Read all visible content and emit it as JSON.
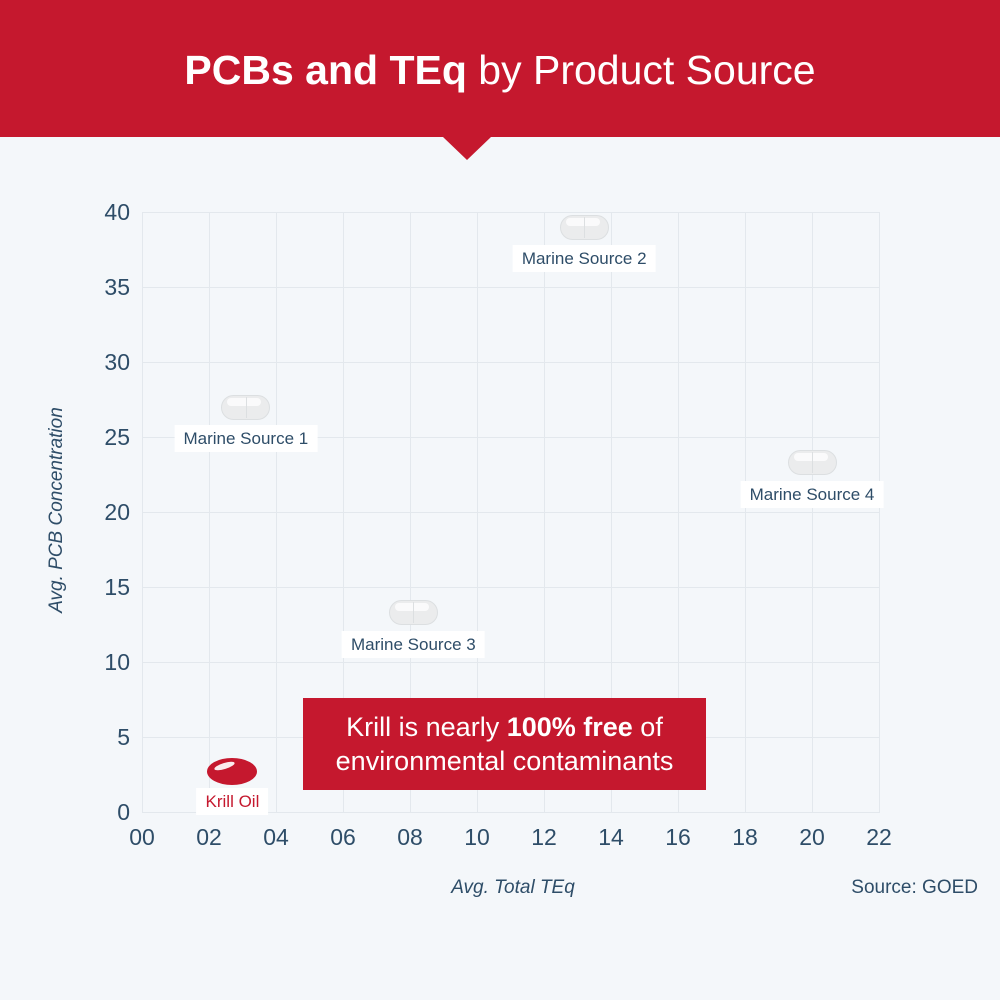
{
  "header": {
    "title_bold": "PCBs and TEq",
    "title_regular": " by Product Source"
  },
  "callout": {
    "line1_prefix": "Krill is nearly ",
    "line1_bold": "100% free",
    "line1_suffix": " of",
    "line2": "environmental contaminants"
  },
  "footer": {
    "source_label": "Source: GOED"
  },
  "colors": {
    "accent_red": "#c5182e",
    "navy_text": "#2e4d68",
    "background": "#f4f7fa",
    "grid_line": "#e3e8ed",
    "capsule_fill": "#ebeced",
    "label_box_bg": "#ffffff"
  },
  "chart_data": {
    "type": "scatter",
    "title": "PCBs and TEq by Product Source",
    "xlabel": "Avg. Total TEq",
    "ylabel": "Avg. PCB Concentration",
    "xlim": [
      0,
      22
    ],
    "ylim": [
      0,
      40
    ],
    "xticks": [
      "00",
      "02",
      "04",
      "06",
      "08",
      "10",
      "12",
      "14",
      "16",
      "18",
      "20",
      "22"
    ],
    "yticks": [
      40,
      35,
      30,
      25,
      20,
      15,
      10,
      5,
      0
    ],
    "grid": true,
    "legend": "none",
    "points": [
      {
        "name": "Marine Source 1",
        "x": 3.1,
        "y": 27,
        "marker": "capsule",
        "accent": false
      },
      {
        "name": "Marine Source 2",
        "x": 13.2,
        "y": 39,
        "marker": "capsule",
        "accent": false
      },
      {
        "name": "Marine Source 3",
        "x": 8.1,
        "y": 13.3,
        "marker": "capsule",
        "accent": false
      },
      {
        "name": "Marine Source 4",
        "x": 20,
        "y": 23.3,
        "marker": "capsule",
        "accent": false
      },
      {
        "name": "Krill Oil",
        "x": 2.7,
        "y": 2.7,
        "marker": "softgel",
        "accent": true
      }
    ],
    "annotation": "Krill is nearly 100% free of environmental contaminants",
    "source": "Source: GOED"
  }
}
